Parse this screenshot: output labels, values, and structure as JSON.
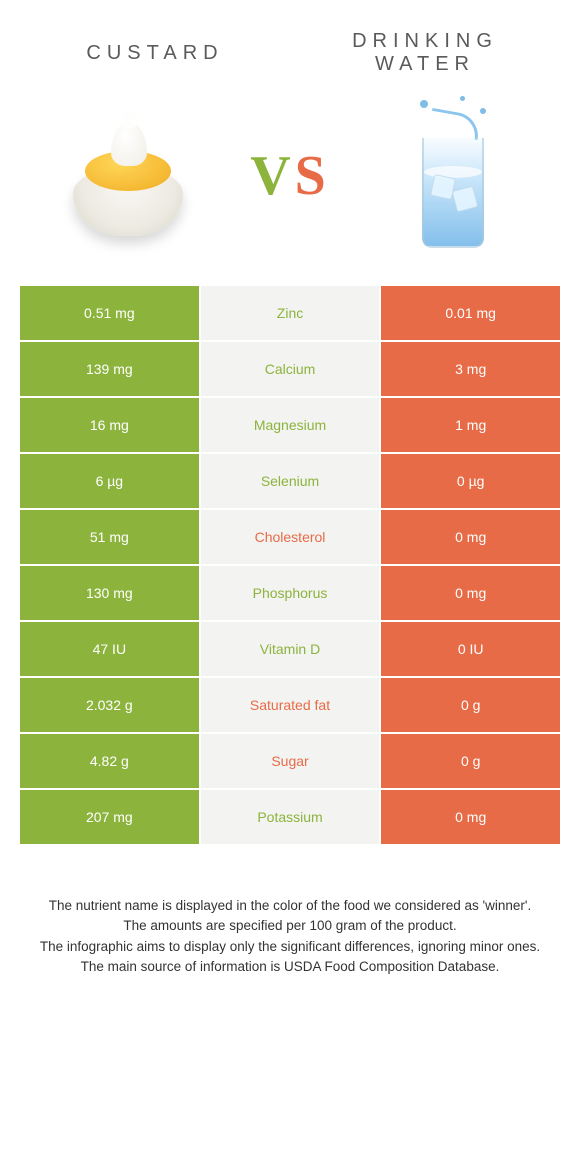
{
  "colors": {
    "left_bg": "#8cb43c",
    "right_bg": "#e86b47",
    "mid_bg": "#f3f3f1",
    "vs_v": "#8cb43c",
    "vs_s": "#e86b47",
    "title_text": "#5a5a5a",
    "left_label_text": "#8cb43c",
    "right_label_text": "#e86b47"
  },
  "header": {
    "left_title": "CUSTARD",
    "right_title": "DRINKING WATER",
    "vs_v": "V",
    "vs_s": "S"
  },
  "rows": [
    {
      "left": "0.51 mg",
      "label": "Zinc",
      "right": "0.01 mg",
      "winner": "left"
    },
    {
      "left": "139 mg",
      "label": "Calcium",
      "right": "3 mg",
      "winner": "left"
    },
    {
      "left": "16 mg",
      "label": "Magnesium",
      "right": "1 mg",
      "winner": "left"
    },
    {
      "left": "6 µg",
      "label": "Selenium",
      "right": "0 µg",
      "winner": "left"
    },
    {
      "left": "51 mg",
      "label": "Cholesterol",
      "right": "0 mg",
      "winner": "right"
    },
    {
      "left": "130 mg",
      "label": "Phosphorus",
      "right": "0 mg",
      "winner": "left"
    },
    {
      "left": "47 IU",
      "label": "Vitamin D",
      "right": "0 IU",
      "winner": "left"
    },
    {
      "left": "2.032 g",
      "label": "Saturated fat",
      "right": "0 g",
      "winner": "right"
    },
    {
      "left": "4.82 g",
      "label": "Sugar",
      "right": "0 g",
      "winner": "right"
    },
    {
      "left": "207 mg",
      "label": "Potassium",
      "right": "0 mg",
      "winner": "left"
    }
  ],
  "footer": {
    "line1": "The nutrient name is displayed in the color of the food we considered as 'winner'.",
    "line2": "The amounts are specified per 100 gram of the product.",
    "line3": "The infographic aims to display only the significant differences, ignoring minor ones.",
    "line4": "The main source of information is USDA Food Composition Database."
  }
}
